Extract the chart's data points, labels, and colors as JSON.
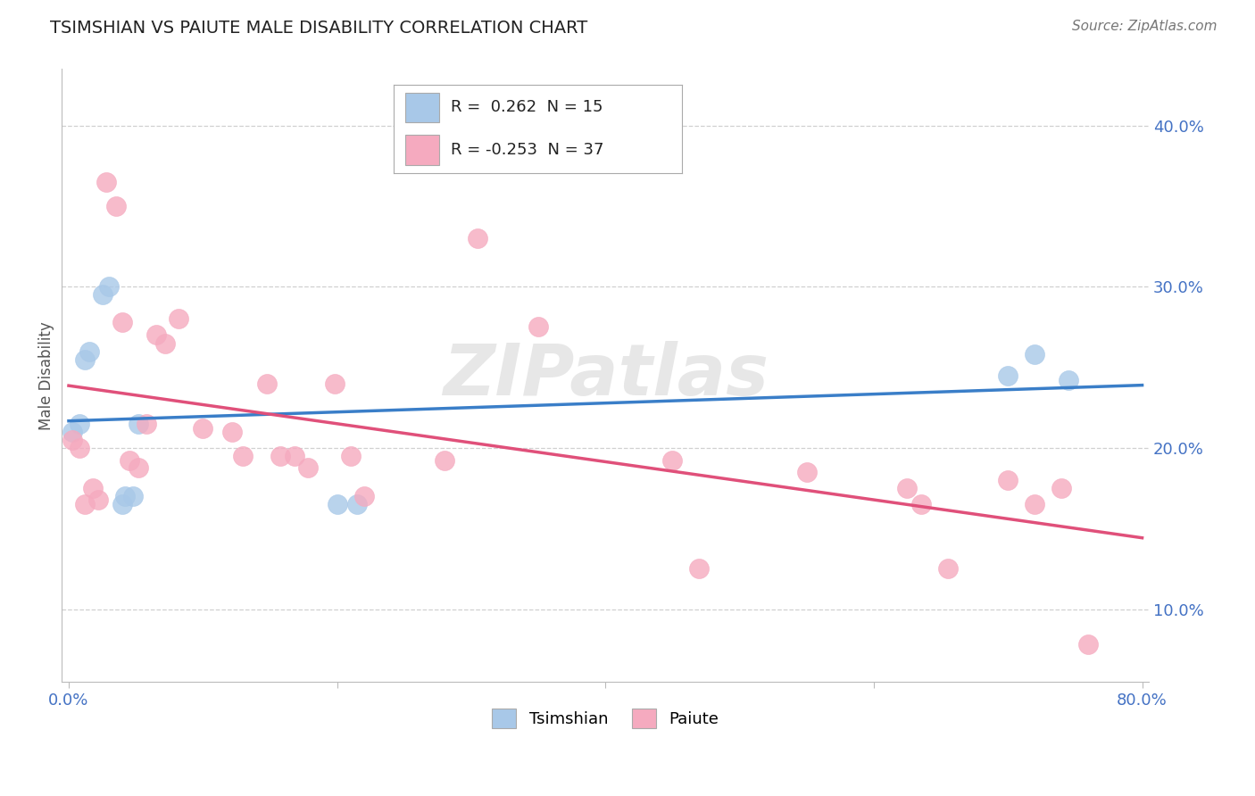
{
  "title": "TSIMSHIAN VS PAIUTE MALE DISABILITY CORRELATION CHART",
  "source": "Source: ZipAtlas.com",
  "ylabel": "Male Disability",
  "ytick_labels": [
    "10.0%",
    "20.0%",
    "30.0%",
    "40.0%"
  ],
  "ytick_values": [
    0.1,
    0.2,
    0.3,
    0.4
  ],
  "xlim": [
    -0.005,
    0.805
  ],
  "ylim": [
    0.055,
    0.435
  ],
  "tsimshian_R": "0.262",
  "tsimshian_N": "15",
  "paiute_R": "-0.253",
  "paiute_N": "37",
  "tsimshian_color": "#a8c8e8",
  "paiute_color": "#f5aabf",
  "tsimshian_line_color": "#3a7ec8",
  "paiute_line_color": "#e0507a",
  "tsimshian_x": [
    0.003,
    0.008,
    0.012,
    0.015,
    0.025,
    0.03,
    0.04,
    0.042,
    0.048,
    0.052,
    0.2,
    0.215,
    0.7,
    0.72,
    0.745
  ],
  "tsimshian_y": [
    0.21,
    0.215,
    0.255,
    0.26,
    0.295,
    0.3,
    0.165,
    0.17,
    0.17,
    0.215,
    0.165,
    0.165,
    0.245,
    0.258,
    0.242
  ],
  "paiute_x": [
    0.003,
    0.008,
    0.012,
    0.018,
    0.022,
    0.028,
    0.035,
    0.04,
    0.045,
    0.052,
    0.058,
    0.065,
    0.072,
    0.082,
    0.1,
    0.122,
    0.13,
    0.148,
    0.158,
    0.168,
    0.178,
    0.198,
    0.21,
    0.22,
    0.28,
    0.305,
    0.35,
    0.45,
    0.47,
    0.55,
    0.625,
    0.635,
    0.655,
    0.7,
    0.72,
    0.74,
    0.76
  ],
  "paiute_y": [
    0.205,
    0.2,
    0.165,
    0.175,
    0.168,
    0.365,
    0.35,
    0.278,
    0.192,
    0.188,
    0.215,
    0.27,
    0.265,
    0.28,
    0.212,
    0.21,
    0.195,
    0.24,
    0.195,
    0.195,
    0.188,
    0.24,
    0.195,
    0.17,
    0.192,
    0.33,
    0.275,
    0.192,
    0.125,
    0.185,
    0.175,
    0.165,
    0.125,
    0.18,
    0.165,
    0.175,
    0.078
  ],
  "watermark": "ZIPatlas",
  "background_color": "#ffffff",
  "grid_color": "#d0d0d0"
}
